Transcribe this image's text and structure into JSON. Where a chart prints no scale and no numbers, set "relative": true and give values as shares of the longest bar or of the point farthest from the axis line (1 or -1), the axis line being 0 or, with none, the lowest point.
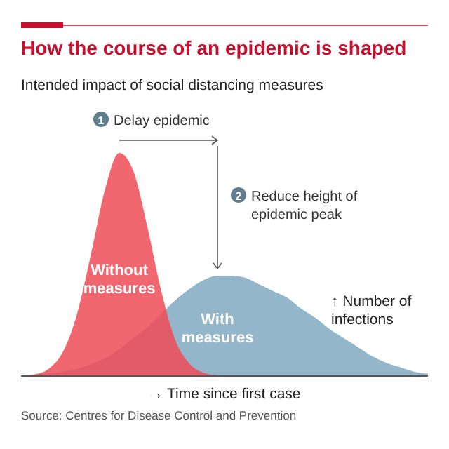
{
  "chart_data": {
    "type": "area",
    "relative": true,
    "title": "How the course of an epidemic is shaped",
    "subtitle": "Intended impact of social distancing measures",
    "xlabel": "→ Time since first case",
    "ylabel": "↑ Number of infections",
    "categories": [
      null,
      null,
      null,
      null,
      null,
      null,
      null,
      null,
      null,
      null,
      null,
      null,
      null,
      null,
      null,
      null,
      null,
      null,
      null,
      null,
      null,
      null,
      null,
      null,
      null,
      null,
      null,
      null,
      null,
      null
    ],
    "series": [
      {
        "name": "With measures",
        "color": "#93b6cb",
        "values": [
          0.003,
          0.006,
          0.011,
          0.02,
          0.033,
          0.054,
          0.08,
          0.12,
          0.17,
          0.22,
          0.28,
          0.34,
          0.39,
          0.43,
          0.45,
          0.45,
          0.44,
          0.41,
          0.38,
          0.35,
          0.3,
          0.26,
          0.21,
          0.17,
          0.13,
          0.09,
          0.06,
          0.04,
          0.02,
          0.01
        ]
      },
      {
        "name": "Without measures",
        "color": "#ef4c57",
        "values": [
          0.002,
          0.008,
          0.034,
          0.11,
          0.28,
          0.55,
          0.84,
          1,
          0.92,
          0.67,
          0.38,
          0.16,
          0.056,
          0.015,
          0.003,
          0,
          0,
          0,
          0,
          0,
          0,
          0,
          0,
          0,
          0,
          0,
          0,
          0,
          0,
          0
        ]
      }
    ],
    "annotations": [
      "1 Delay epidemic",
      "2 Reduce height of epidemic peak",
      "Source: Centres for Disease Control and Prevention"
    ]
  }
}
